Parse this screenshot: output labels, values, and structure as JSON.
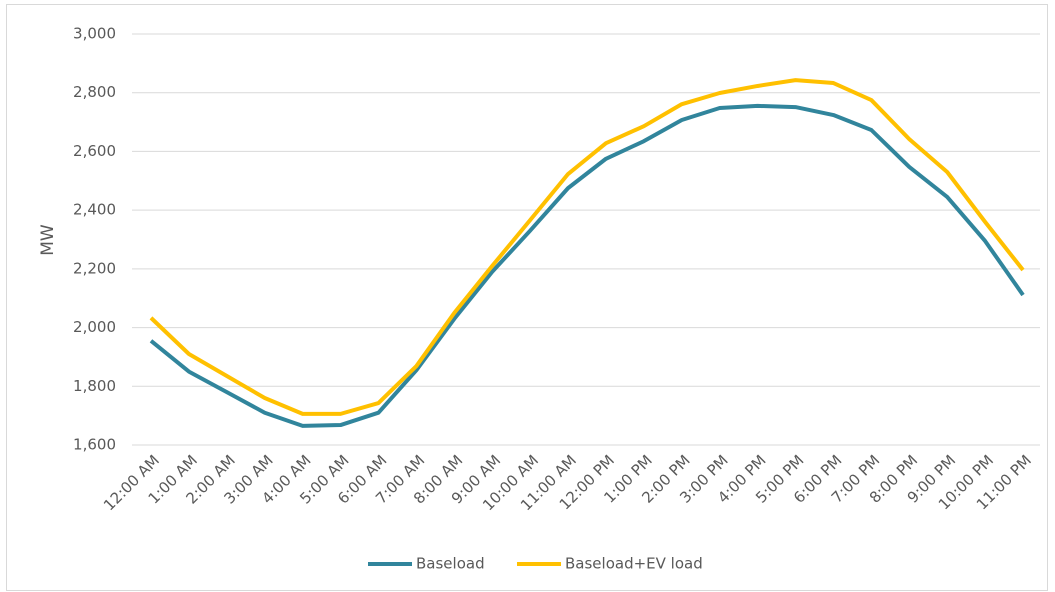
{
  "chart_data": {
    "type": "line",
    "y_label": "MW",
    "categories": [
      "12:00 AM",
      "1:00 AM",
      "2:00 AM",
      "3:00 AM",
      "4:00 AM",
      "5:00 AM",
      "6:00 AM",
      "7:00 AM",
      "8:00 AM",
      "9:00 AM",
      "10:00 AM",
      "11:00 AM",
      "12:00 PM",
      "1:00 PM",
      "2:00 PM",
      "3:00 PM",
      "4:00 PM",
      "5:00 PM",
      "6:00 PM",
      "7:00 PM",
      "8:00 PM",
      "9:00 PM",
      "10:00 PM",
      "11:00 PM"
    ],
    "series": [
      {
        "name": "Baseload",
        "color": "#31859c",
        "values": [
          1955,
          1850,
          1780,
          1710,
          1665,
          1668,
          1710,
          1855,
          2030,
          2190,
          2330,
          2475,
          2575,
          2635,
          2707,
          2748,
          2755,
          2751,
          2724,
          2673,
          2547,
          2445,
          2295,
          2111
        ]
      },
      {
        "name": "Baseload+EV load",
        "color": "#ffc000",
        "values": [
          2033,
          1910,
          1835,
          1760,
          1706,
          1706,
          1743,
          1869,
          2050,
          2210,
          2366,
          2523,
          2628,
          2686,
          2761,
          2799,
          2823,
          2843,
          2833,
          2775,
          2642,
          2530,
          2360,
          2196
        ]
      }
    ],
    "ylim": [
      1600,
      3000
    ],
    "yticks": [
      {
        "value": 1600,
        "label": "1,600"
      },
      {
        "value": 1800,
        "label": "1,800"
      },
      {
        "value": 2000,
        "label": "2,000"
      },
      {
        "value": 2200,
        "label": "2,200"
      },
      {
        "value": 2400,
        "label": "2,400"
      },
      {
        "value": 2600,
        "label": "2,600"
      },
      {
        "value": 2800,
        "label": "2,800"
      },
      {
        "value": 3000,
        "label": "3,000"
      }
    ],
    "grid": true,
    "legend": "bottom"
  }
}
